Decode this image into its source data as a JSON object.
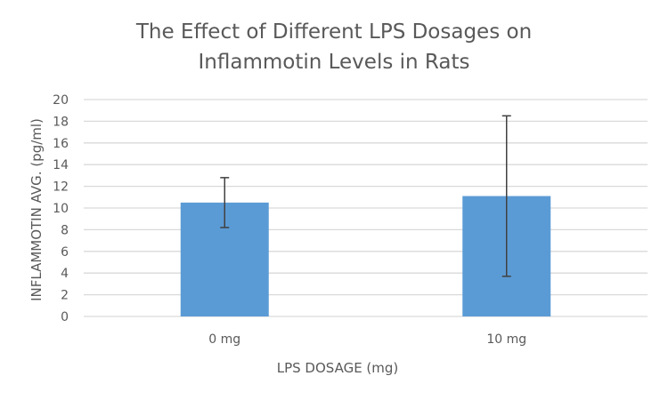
{
  "chart_data": {
    "type": "bar",
    "title": "The Effect of Different LPS Dosages on Inflammotin Levels in Rats",
    "title_lines": [
      "The Effect of Different LPS Dosages on",
      "Inflammotin Levels in Rats"
    ],
    "xlabel": "LPS DOSAGE (mg)",
    "ylabel": "INFLAMMOTIN AVG. (pg/ml)",
    "categories": [
      "0 mg",
      "10 mg"
    ],
    "values": [
      10.5,
      11.1
    ],
    "error_bars": [
      {
        "low": 8.2,
        "high": 12.8
      },
      {
        "low": 3.7,
        "high": 18.5
      }
    ],
    "ylim": [
      0,
      20
    ],
    "yticks": [
      0,
      2,
      4,
      6,
      8,
      10,
      12,
      14,
      16,
      18,
      20
    ],
    "ytick_labels": [
      "0",
      "2",
      "4",
      "6",
      "8",
      "10",
      "12",
      "14",
      "16",
      "18",
      "20"
    ],
    "grid": true,
    "legend": "none",
    "colors": {
      "bar": "#5b9bd5",
      "error_bar": "#404040",
      "grid": "#d9d9d9",
      "text": "#595959"
    }
  }
}
